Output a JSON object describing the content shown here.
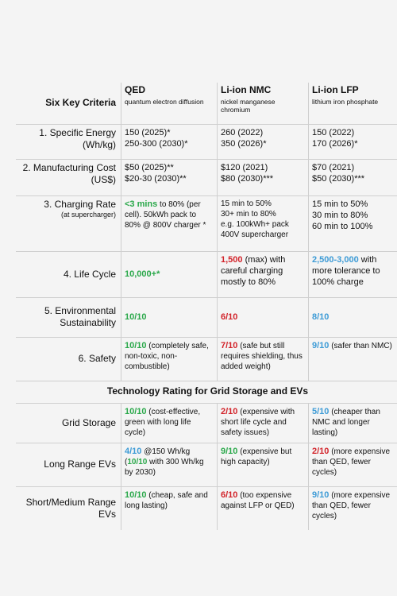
{
  "header": {
    "criteria": "Six Key Criteria",
    "qed": {
      "title": "QED",
      "sub": "quantum electron diffusion"
    },
    "nmc": {
      "title": "Li-ion NMC",
      "sub": "nickel manganese chromium"
    },
    "lfp": {
      "title": "Li-ion LFP",
      "sub": "lithium iron phosphate"
    }
  },
  "rows": {
    "r1": {
      "label": "1. Specific Energy (Wh/kg)",
      "qed": "150 (2025)*\n250-300 (2030)*",
      "nmc": "260 (2022)\n350 (2026)*",
      "lfp": "150 (2022)\n170 (2026)*"
    },
    "r2": {
      "label": "2. Manufacturing Cost (US$)",
      "qed": "$50 (2025)**\n$20-30 (2030)**",
      "nmc": "$120 (2021)\n$80 (2030)***",
      "lfp": "$70 (2021)\n$50 (2030)***"
    },
    "r3": {
      "label": "3. Charging Rate",
      "sublabel": "(at supercharger)",
      "qed_hl": "<3 mins",
      "qed": " to 80% (per cell). 50kWh pack to 80% @ 800V charger *",
      "nmc": "15 min to 50%\n30+ min to 80%\ne.g. 100kWh+ pack 400V supercharger",
      "lfp": "15 min to 50%\n30 min to 80%\n60 min to 100%"
    },
    "r4": {
      "label": "4. Life Cycle",
      "qed_hl": "10,000+*",
      "nmc_hl": "1,500",
      "nmc": " (max) with careful charging mostly to 80%",
      "lfp_hl": "2,500-3,000",
      "lfp": " with more tolerance to 100% charge"
    },
    "r5": {
      "label": "5. Environmental Sustainability",
      "qed_hl": "10/10",
      "nmc_hl": "6/10",
      "lfp_hl": "8/10"
    },
    "r6": {
      "label": "6. Safety",
      "qed_hl": "10/10",
      "qed": " (completely safe, non-toxic, non-combustible)",
      "nmc_hl": "7/10",
      "nmc": " (safe but still requires shielding, thus added weight)",
      "lfp_hl": "9/10",
      "lfp": " (safer than NMC)"
    }
  },
  "section_title": "Technology Rating for Grid Storage and EVs",
  "ratings": {
    "g1": {
      "label": "Grid Storage",
      "qed_hl": "10/10",
      "qed": " (cost-effective, green with long life cycle)",
      "nmc_hl": "2/10",
      "nmc": " (expensive with short life cycle and safety issues)",
      "lfp_hl": "5/10",
      "lfp": " (cheaper than NMC and longer lasting)"
    },
    "g2": {
      "label": "Long Range EVs",
      "qed_hl": "4/10",
      "qed": " @150 Wh/kg (",
      "qed_hl2": "10/10",
      "qed2": " with 300 Wh/kg by 2030)",
      "nmc_hl": "9/10",
      "nmc": " (expensive but high capacity)",
      "lfp_hl": "2/10",
      "lfp": " (more expensive than QED, fewer cycles)"
    },
    "g3": {
      "label": "Short/Medium Range EVs",
      "qed_hl": "10/10",
      "qed": " (cheap, safe and long lasting)",
      "nmc_hl": "6/10",
      "nmc": " (too expensive against LFP or QED)",
      "lfp_hl": "9/10",
      "lfp": " (more expensive than QED, fewer cycles)"
    }
  },
  "colors": {
    "green": "#2aa84a",
    "red": "#d2232a",
    "blue": "#3d9bd6"
  }
}
